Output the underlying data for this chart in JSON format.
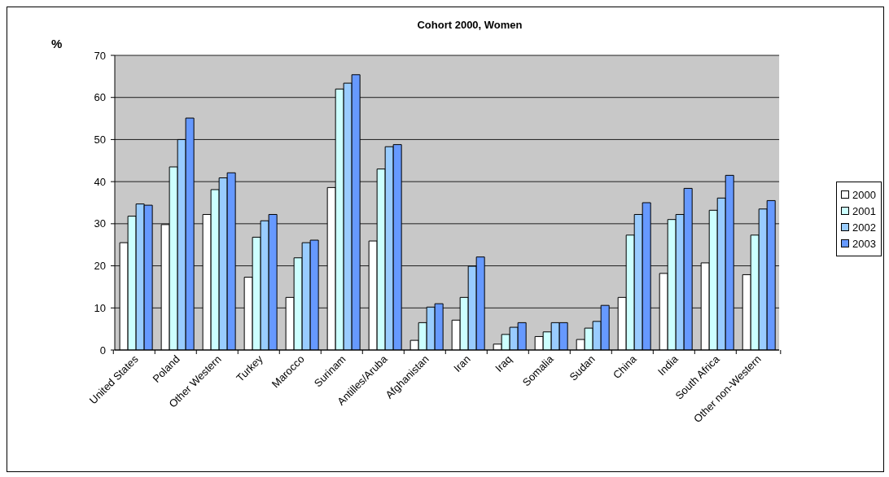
{
  "chart_data": {
    "type": "bar",
    "title": "Cohort 2000, Women",
    "ylabel": "%",
    "categories": [
      "United States",
      "Poland",
      "Other Western",
      "Turkey",
      "Marocco",
      "Surinam",
      "Antilles/Aruba",
      "Afghanistan",
      "Iran",
      "Iraq",
      "Somalia",
      "Sudan",
      "China",
      "India",
      "South Africa",
      "Other non-Western"
    ],
    "series": [
      {
        "name": "2000",
        "color": "#ffffff",
        "values": [
          25.5,
          29.8,
          32.2,
          17.3,
          12.5,
          38.6,
          25.9,
          2.3,
          7.1,
          1.4,
          3.2,
          2.5,
          12.5,
          18.2,
          20.7,
          17.9
        ]
      },
      {
        "name": "2001",
        "color": "#ccffff",
        "values": [
          31.8,
          43.5,
          38.1,
          26.8,
          21.9,
          62.0,
          43.0,
          6.5,
          12.5,
          3.7,
          4.3,
          5.2,
          27.3,
          31.0,
          33.2,
          27.3
        ]
      },
      {
        "name": "2002",
        "color": "#99ccff",
        "values": [
          34.7,
          50.0,
          40.9,
          30.7,
          25.5,
          63.4,
          48.3,
          10.2,
          19.9,
          5.4,
          6.5,
          6.8,
          32.2,
          32.2,
          36.1,
          33.5
        ]
      },
      {
        "name": "2003",
        "color": "#6699ff",
        "values": [
          34.4,
          55.1,
          42.1,
          32.2,
          26.1,
          65.4,
          48.8,
          11.0,
          22.1,
          6.5,
          6.5,
          10.6,
          35.0,
          38.4,
          41.5,
          35.5
        ]
      }
    ],
    "ylim": [
      0,
      70
    ],
    "yticks": [
      0,
      10,
      20,
      30,
      40,
      50,
      60,
      70
    ],
    "grid": "y",
    "legend": "right"
  }
}
